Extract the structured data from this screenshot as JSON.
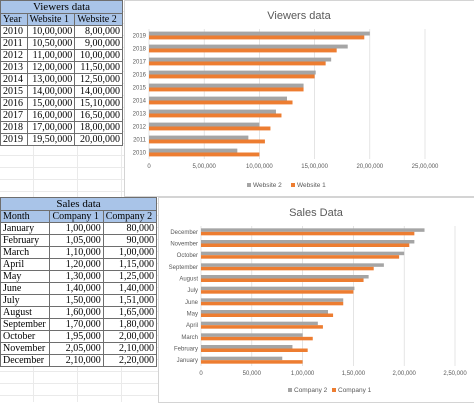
{
  "viewers_table": {
    "title": "Viewers data",
    "headers": [
      "Year",
      "Website 1",
      "Website 2"
    ],
    "rows": [
      [
        "2010",
        "10,00,000",
        "8,00,000"
      ],
      [
        "2011",
        "10,50,000",
        "9,00,000"
      ],
      [
        "2012",
        "11,00,000",
        "10,00,000"
      ],
      [
        "2013",
        "12,00,000",
        "11,50,000"
      ],
      [
        "2014",
        "13,00,000",
        "12,50,000"
      ],
      [
        "2015",
        "14,00,000",
        "14,00,000"
      ],
      [
        "2016",
        "15,00,000",
        "15,10,000"
      ],
      [
        "2017",
        "16,00,000",
        "16,50,000"
      ],
      [
        "2018",
        "17,00,000",
        "18,00,000"
      ],
      [
        "2019",
        "19,50,000",
        "20,00,000"
      ]
    ]
  },
  "sales_table": {
    "title": "Sales data",
    "headers": [
      "Month",
      "Company 1",
      "Company 2"
    ],
    "rows": [
      [
        "January",
        "1,00,000",
        "80,000"
      ],
      [
        "February",
        "1,05,000",
        "90,000"
      ],
      [
        "March",
        "1,10,000",
        "1,00,000"
      ],
      [
        "April",
        "1,20,000",
        "1,15,000"
      ],
      [
        "May",
        "1,30,000",
        "1,25,000"
      ],
      [
        "June",
        "1,40,000",
        "1,40,000"
      ],
      [
        "July",
        "1,50,000",
        "1,51,000"
      ],
      [
        "August",
        "1,60,000",
        "1,65,000"
      ],
      [
        "September",
        "1,70,000",
        "1,80,000"
      ],
      [
        "October",
        "1,95,000",
        "2,00,000"
      ],
      [
        "November",
        "2,05,000",
        "2,10,000"
      ],
      [
        "December",
        "2,10,000",
        "2,20,000"
      ]
    ]
  },
  "chart_data": [
    {
      "type": "bar",
      "orientation": "horizontal",
      "title": "Viewers data",
      "categories": [
        "2010",
        "2011",
        "2012",
        "2013",
        "2014",
        "2015",
        "2016",
        "2017",
        "2018",
        "2019"
      ],
      "series": [
        {
          "name": "Website 2",
          "values": [
            800000,
            900000,
            1000000,
            1150000,
            1250000,
            1400000,
            1510000,
            1650000,
            1800000,
            2000000
          ],
          "color": "#a5a5a5"
        },
        {
          "name": "Website 1",
          "values": [
            1000000,
            1050000,
            1100000,
            1200000,
            1300000,
            1400000,
            1500000,
            1600000,
            1700000,
            1950000
          ],
          "color": "#ed7d31"
        }
      ],
      "xlim": [
        0,
        2500000
      ],
      "xticks": [
        "0",
        "5,00,000",
        "10,00,000",
        "15,00,000",
        "20,00,000",
        "25,00,000"
      ],
      "legend": "bottom",
      "grid": true
    },
    {
      "type": "bar",
      "orientation": "horizontal",
      "title": "Sales Data",
      "categories": [
        "January",
        "February",
        "March",
        "April",
        "May",
        "June",
        "July",
        "August",
        "September",
        "October",
        "November",
        "December"
      ],
      "series": [
        {
          "name": "Company 2",
          "values": [
            80000,
            90000,
            100000,
            115000,
            125000,
            140000,
            151000,
            165000,
            180000,
            200000,
            210000,
            220000
          ],
          "color": "#a5a5a5"
        },
        {
          "name": "Company 1",
          "values": [
            100000,
            105000,
            110000,
            120000,
            130000,
            140000,
            150000,
            160000,
            170000,
            195000,
            205000,
            210000
          ],
          "color": "#ed7d31"
        }
      ],
      "xlim": [
        0,
        250000
      ],
      "xticks": [
        "0",
        "50,000",
        "1,00,000",
        "1,50,000",
        "2,00,000",
        "2,50,000"
      ],
      "legend": "bottom",
      "grid": true
    }
  ]
}
